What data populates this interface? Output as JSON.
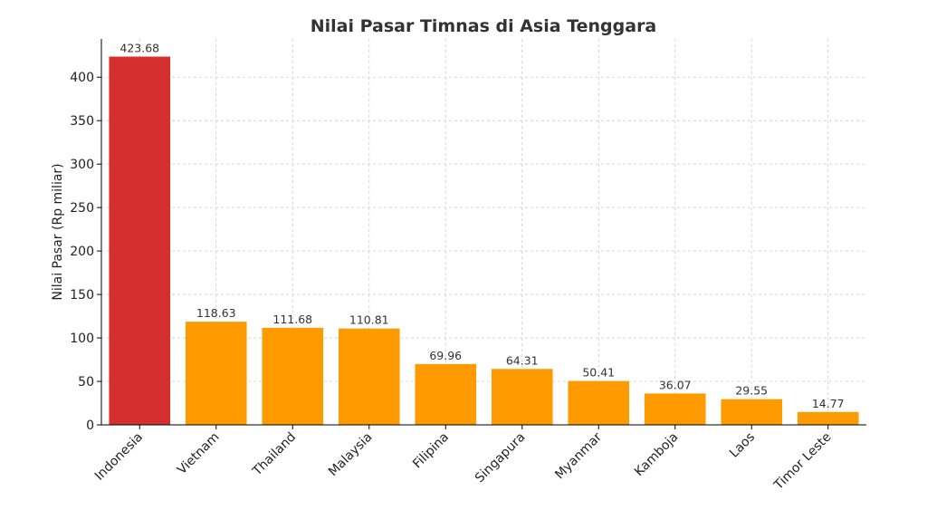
{
  "chart_data": {
    "type": "bar",
    "title": "Nilai Pasar Timnas di Asia Tenggara",
    "xlabel": "",
    "ylabel": "Nilai Pasar (Rp miliar)",
    "categories": [
      "Indonesia",
      "Vietnam",
      "Thailand",
      "Malaysia",
      "Filipina",
      "Singapura",
      "Myanmar",
      "Kamboja",
      "Laos",
      "Timor Leste"
    ],
    "values": [
      423.68,
      118.63,
      111.68,
      110.81,
      69.96,
      64.31,
      50.41,
      36.07,
      29.55,
      14.77
    ],
    "value_labels": [
      "423.68",
      "118.63",
      "111.68",
      "110.81",
      "69.96",
      "64.31",
      "50.41",
      "36.07",
      "29.55",
      "14.77"
    ],
    "highlight_index": 0,
    "colors": {
      "highlight": "#d62f2f",
      "default": "#ff9a00"
    },
    "ylim": [
      0,
      444
    ],
    "yticks": [
      0,
      50,
      100,
      150,
      200,
      250,
      300,
      350,
      400
    ],
    "grid": true
  }
}
